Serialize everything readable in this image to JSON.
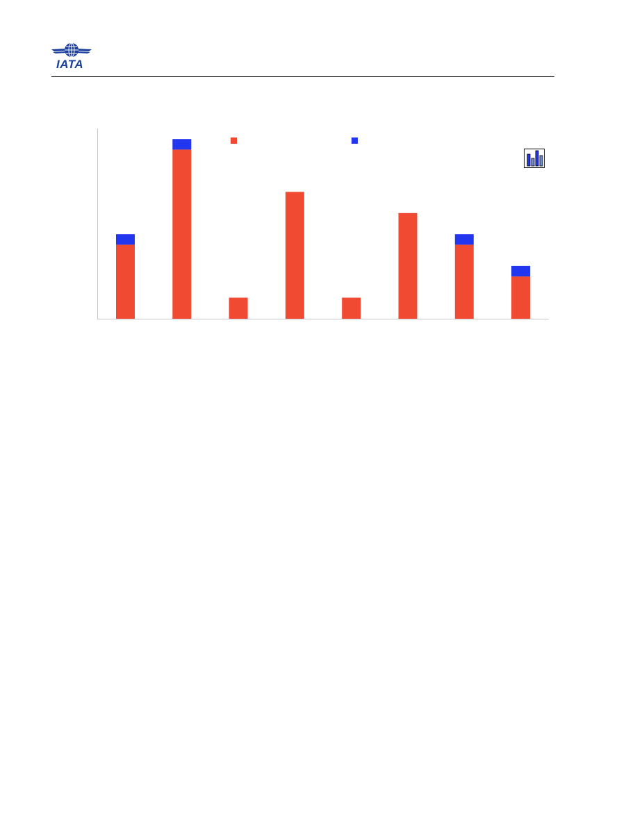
{
  "header": {
    "logo_text": "IATA"
  },
  "colors": {
    "brand": "#1b3f9c",
    "rule": "#000000",
    "series_1": "#f04a33",
    "series_2": "#2236f0",
    "axis": "#c8c8c8"
  },
  "chart_data": {
    "type": "bar",
    "stacked": true,
    "categories": [
      "",
      "",
      "",
      "",
      "",
      "",
      "",
      ""
    ],
    "series": [
      {
        "name": "",
        "values": [
          7,
          16,
          2,
          12,
          2,
          10,
          7,
          4
        ]
      },
      {
        "name": "",
        "values": [
          1,
          1,
          0,
          0,
          0,
          0,
          1,
          1
        ]
      }
    ],
    "ylim": [
      0,
      18
    ],
    "grid": false,
    "legend": "top-center",
    "title": "",
    "xlabel": "",
    "ylabel": ""
  },
  "chart_toolbar": {
    "icon": "bar-chart-icon"
  }
}
